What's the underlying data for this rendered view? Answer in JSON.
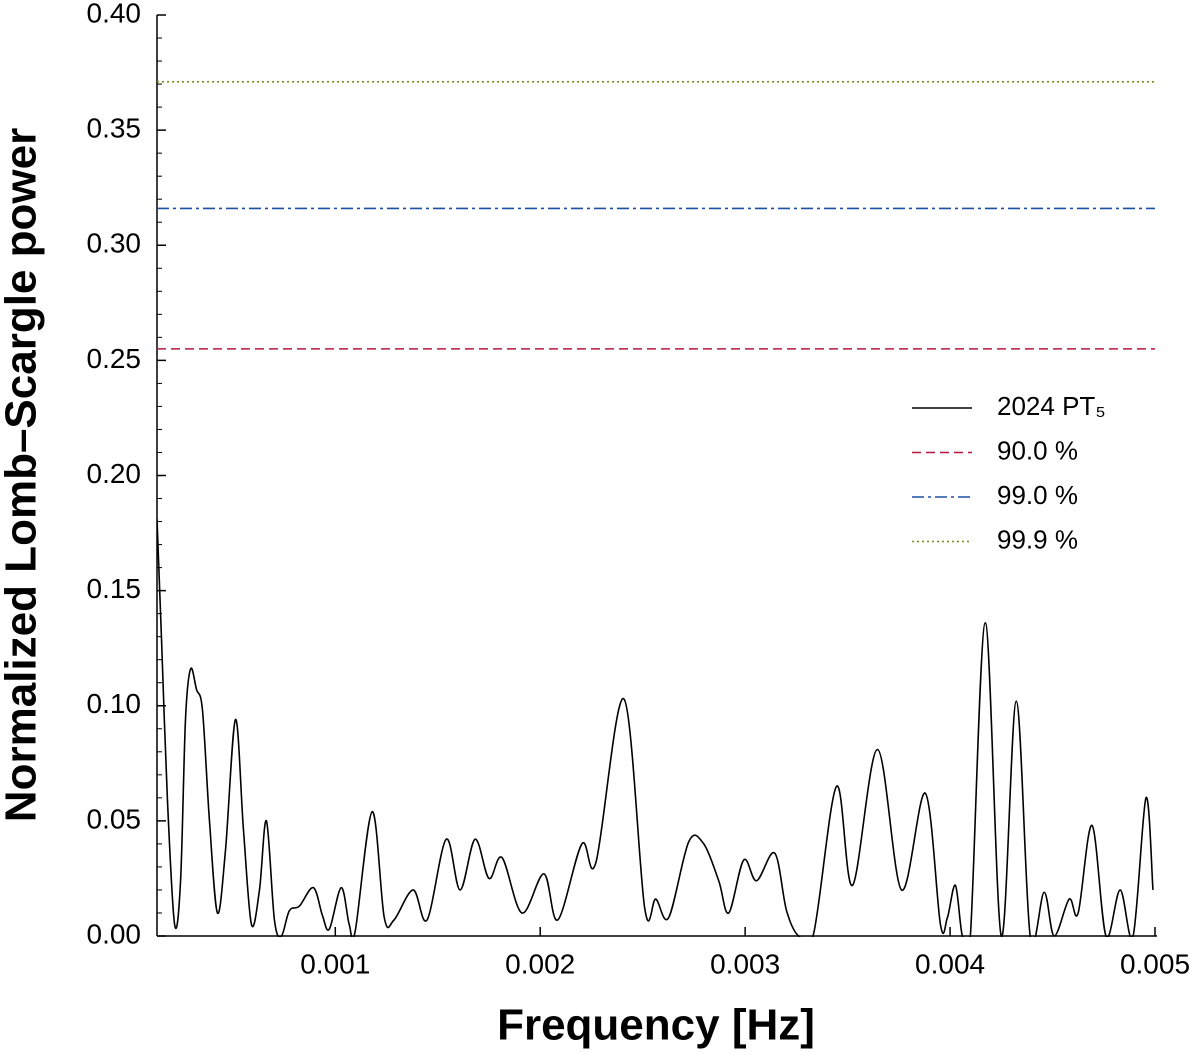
{
  "chart_data": {
    "type": "line",
    "xlabel": "Frequency [Hz]",
    "ylabel": "Normalized Lomb–Scargle power",
    "xlim": [
      0.00013,
      0.005
    ],
    "ylim": [
      0,
      0.4
    ],
    "xticks": [
      0.001,
      0.002,
      0.003,
      0.004,
      0.005
    ],
    "yticks": [
      {
        "value": 0,
        "label": "0.00"
      },
      {
        "value": 0.05,
        "label": "0.05"
      },
      {
        "value": 0.1,
        "label": "0.10"
      },
      {
        "value": 0.15,
        "label": "0.15"
      },
      {
        "value": 0.2,
        "label": "0.20"
      },
      {
        "value": 0.25,
        "label": "0.25"
      },
      {
        "value": 0.3,
        "label": "0.30"
      },
      {
        "value": 0.35,
        "label": "0.35"
      },
      {
        "value": 0.4,
        "label": "0.40"
      }
    ],
    "legend": "right",
    "x": [
      0.00013,
      0.000152,
      0.000181,
      0.000216,
      0.000245,
      0.000269,
      0.000294,
      0.000323,
      0.000352,
      0.000386,
      0.000425,
      0.000464,
      0.000513,
      0.000552,
      0.000591,
      0.00063,
      0.000664,
      0.000703,
      0.000737,
      0.000776,
      0.000825,
      0.000893,
      0.000937,
      0.000971,
      0.001029,
      0.001068,
      0.001097,
      0.00118,
      0.001239,
      0.001287,
      0.00138,
      0.001448,
      0.001541,
      0.001609,
      0.001682,
      0.00175,
      0.001814,
      0.001911,
      0.002018,
      0.002086,
      0.002203,
      0.002272,
      0.002408,
      0.00251,
      0.002564,
      0.002627,
      0.002725,
      0.002798,
      0.002871,
      0.00292,
      0.002993,
      0.003056,
      0.003144,
      0.003202,
      0.003261,
      0.003334,
      0.003446,
      0.003524,
      0.003646,
      0.003763,
      0.003879,
      0.003953,
      0.003987,
      0.004026,
      0.00406,
      0.004099,
      0.004172,
      0.00425,
      0.004323,
      0.004391,
      0.004459,
      0.004508,
      0.004581,
      0.004625,
      0.004693,
      0.004761,
      0.00483,
      0.004893,
      0.004956,
      0.00499
    ],
    "series": [
      {
        "name": "2024 PT₅",
        "color": "#000000",
        "style": "solid",
        "values": [
          0.181,
          0.129,
          0.059,
          0.005,
          0.024,
          0.094,
          0.116,
          0.107,
          0.098,
          0.05,
          0.01,
          0.037,
          0.094,
          0.046,
          0.005,
          0.02,
          0.05,
          0.007,
          0.0,
          0.011,
          0.013,
          0.021,
          0.009,
          0.003,
          0.021,
          0.005,
          0.002,
          0.054,
          0.008,
          0.007,
          0.02,
          0.007,
          0.042,
          0.02,
          0.042,
          0.025,
          0.034,
          0.01,
          0.027,
          0.007,
          0.04,
          0.032,
          0.103,
          0.012,
          0.016,
          0.008,
          0.041,
          0.04,
          0.024,
          0.01,
          0.033,
          0.024,
          0.036,
          0.011,
          0.0,
          0.001,
          0.065,
          0.022,
          0.081,
          0.02,
          0.062,
          0.005,
          0.008,
          0.022,
          0.0,
          0.0,
          0.136,
          0.0,
          0.102,
          0.0,
          0.019,
          0.0,
          0.016,
          0.01,
          0.048,
          0.0,
          0.02,
          0.0,
          0.06,
          0.02
        ]
      },
      {
        "name": "90.0 %",
        "color": "#b5173f",
        "style": "dashed",
        "value": 0.255
      },
      {
        "name": "99.0 %",
        "color": "#1f4fa3",
        "style": "dashdot",
        "value": 0.316
      },
      {
        "name": "99.9 %",
        "color": "#7f8a1a",
        "style": "dotted",
        "value": 0.371
      }
    ]
  }
}
